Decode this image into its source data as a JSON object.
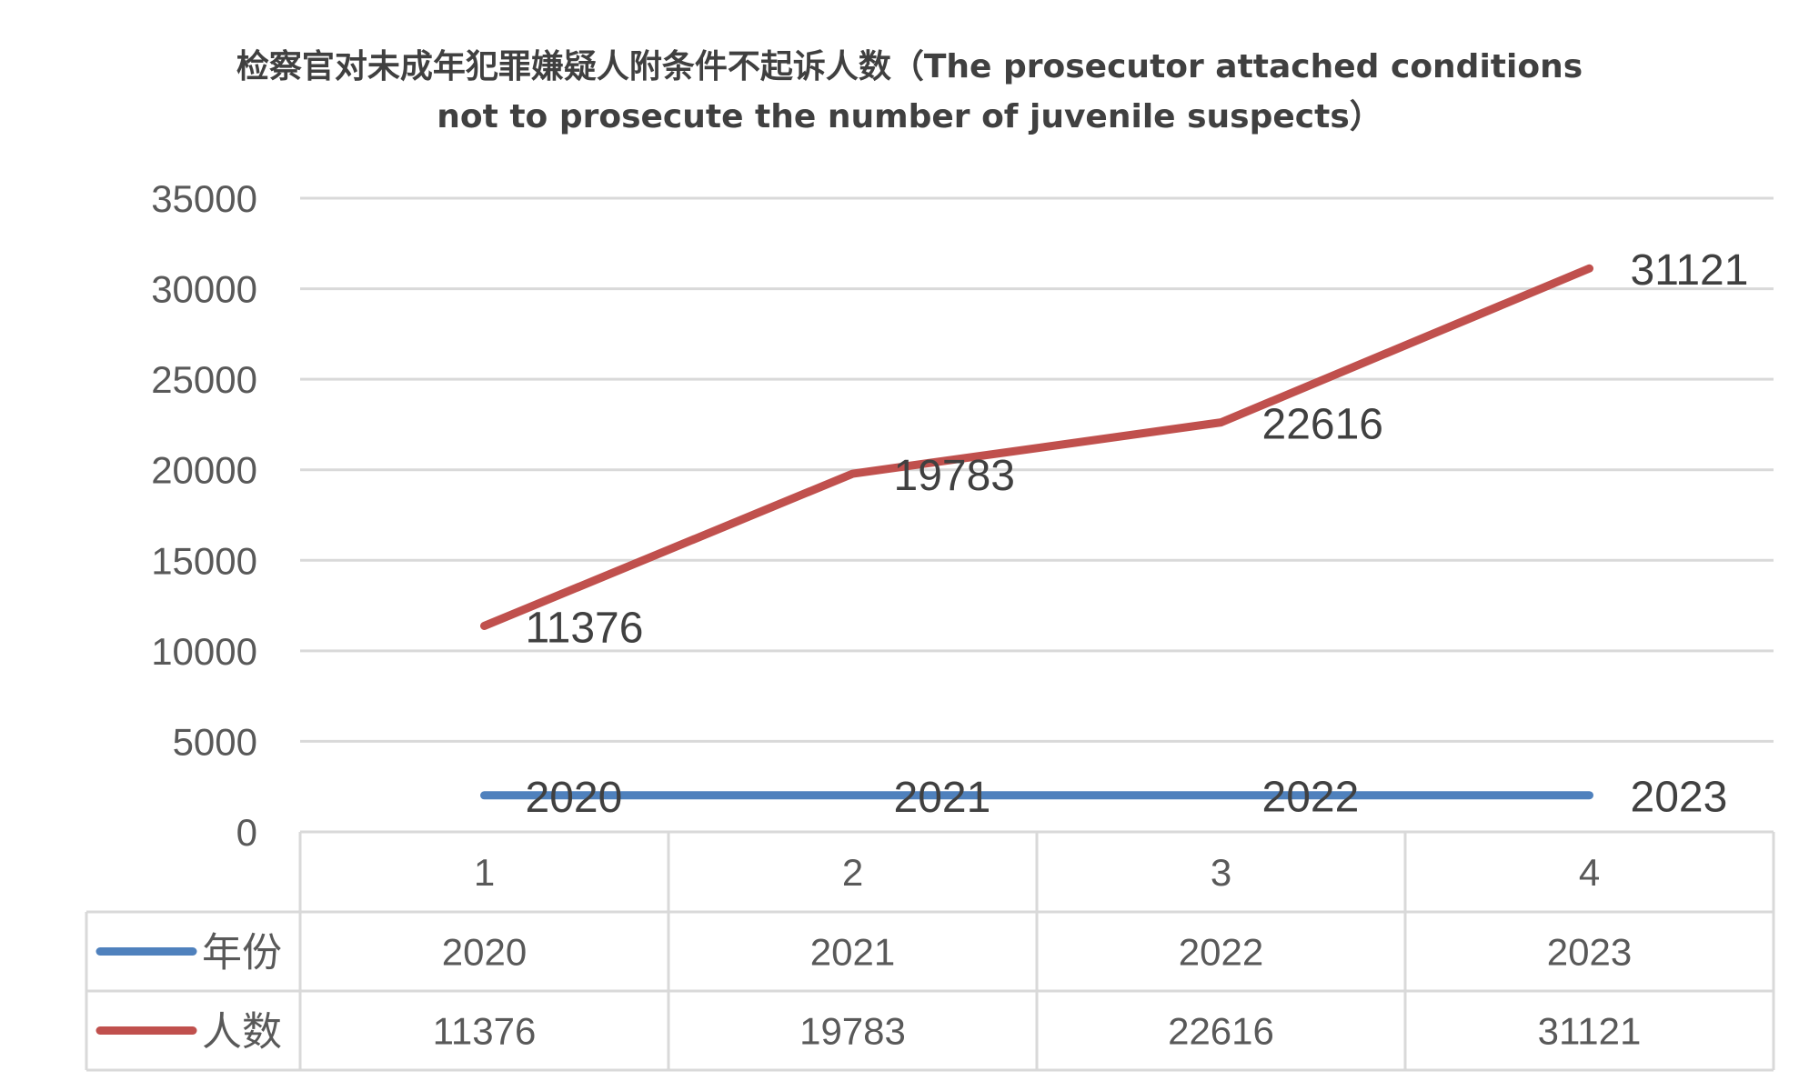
{
  "chart_data": {
    "type": "line",
    "title_line1": "检察官对未成年犯罪嫌疑人附条件不起诉人数（The prosecutor attached conditions",
    "title_line2": "not to prosecute the number of juvenile suspects）",
    "categories": [
      "1",
      "2",
      "3",
      "4"
    ],
    "ylim": [
      0,
      35000
    ],
    "yticks": [
      "0",
      "5000",
      "10000",
      "15000",
      "20000",
      "25000",
      "30000",
      "35000"
    ],
    "grid": true,
    "legend": "data-table",
    "series": [
      {
        "name": "年份",
        "color": "#4f81bd",
        "values": [
          2020,
          2021,
          2022,
          2023
        ],
        "labels": [
          "2020",
          "2021",
          "2022",
          "2023"
        ]
      },
      {
        "name": "人数",
        "color": "#c0504d",
        "values": [
          11376,
          19783,
          22616,
          31121
        ],
        "labels": [
          "11376",
          "19783",
          "22616",
          "31121"
        ]
      }
    ]
  }
}
